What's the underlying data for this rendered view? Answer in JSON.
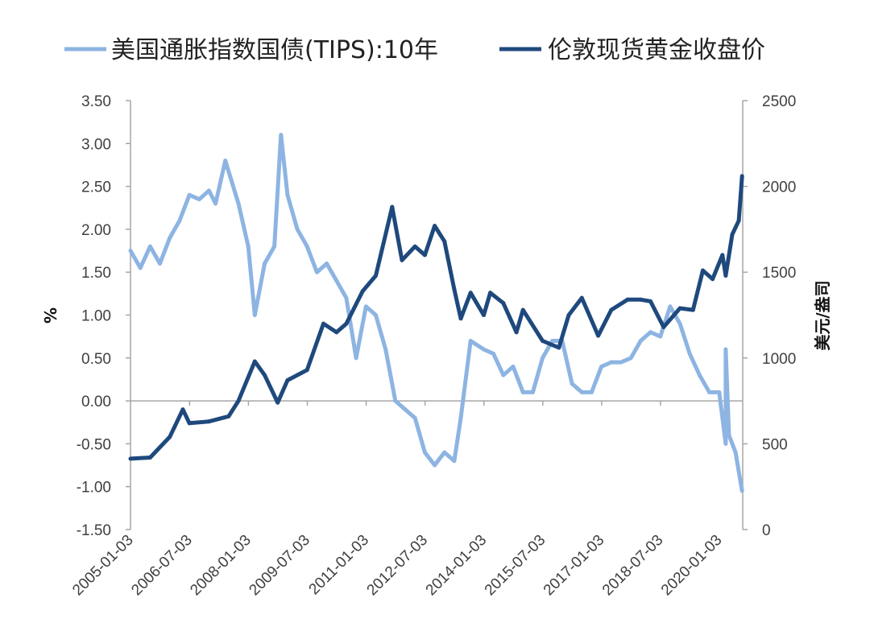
{
  "chart_data": {
    "type": "line",
    "title": "",
    "legend_position": "top",
    "grid": false,
    "x_tick_labels": [
      "2005-01-03",
      "2006-07-03",
      "2008-01-03",
      "2009-07-03",
      "2011-01-03",
      "2012-07-03",
      "2014-01-03",
      "2015-07-03",
      "2017-01-03",
      "2018-07-03",
      "2020-01-03"
    ],
    "y_left": {
      "label": "%",
      "range": [
        -1.5,
        3.5
      ],
      "ticks": [
        "3.50",
        "3.00",
        "2.50",
        "2.00",
        "1.50",
        "1.00",
        "0.50",
        "0.00",
        "-0.50",
        "-1.00",
        "-1.50"
      ]
    },
    "y_right": {
      "label": "美元/盎司",
      "range": [
        0,
        2500
      ],
      "ticks": [
        "2500",
        "2000",
        "1500",
        "1000",
        "500",
        "0"
      ]
    },
    "series": [
      {
        "name": "美国通胀指数国债(TIPS):10年",
        "axis": "left",
        "color": "#8DB4E2",
        "x": [
          "2005-01",
          "2005-04",
          "2005-07",
          "2005-10",
          "2006-01",
          "2006-04",
          "2006-07",
          "2006-10",
          "2007-01",
          "2007-03",
          "2007-06",
          "2007-10",
          "2008-01",
          "2008-03",
          "2008-06",
          "2008-09",
          "2008-11",
          "2009-01",
          "2009-04",
          "2009-07",
          "2009-10",
          "2010-01",
          "2010-04",
          "2010-07",
          "2010-10",
          "2011-01",
          "2011-04",
          "2011-07",
          "2011-10",
          "2012-01",
          "2012-04",
          "2012-07",
          "2012-10",
          "2013-01",
          "2013-04",
          "2013-06",
          "2013-09",
          "2014-01",
          "2014-04",
          "2014-07",
          "2014-10",
          "2015-01",
          "2015-04",
          "2015-07",
          "2015-10",
          "2016-01",
          "2016-04",
          "2016-07",
          "2016-10",
          "2017-01",
          "2017-04",
          "2017-07",
          "2017-10",
          "2018-01",
          "2018-04",
          "2018-07",
          "2018-10",
          "2019-01",
          "2019-04",
          "2019-07",
          "2019-10",
          "2020-01",
          "2020-03",
          "2020-03",
          "2020-04",
          "2020-06",
          "2020-08"
        ],
        "values": [
          1.75,
          1.55,
          1.8,
          1.6,
          1.9,
          2.1,
          2.4,
          2.35,
          2.45,
          2.3,
          2.8,
          2.3,
          1.8,
          1.0,
          1.6,
          1.8,
          3.1,
          2.4,
          2.0,
          1.8,
          1.5,
          1.6,
          1.4,
          1.2,
          0.5,
          1.1,
          1.0,
          0.6,
          0.0,
          -0.1,
          -0.2,
          -0.6,
          -0.75,
          -0.6,
          -0.7,
          -0.2,
          0.7,
          0.6,
          0.55,
          0.3,
          0.4,
          0.1,
          0.1,
          0.5,
          0.7,
          0.7,
          0.2,
          0.1,
          0.1,
          0.4,
          0.45,
          0.45,
          0.5,
          0.7,
          0.8,
          0.75,
          1.1,
          0.9,
          0.55,
          0.3,
          0.1,
          0.1,
          -0.5,
          0.6,
          -0.4,
          -0.6,
          -1.05
        ]
      },
      {
        "name": "伦敦现货黄金收盘价",
        "axis": "right",
        "color": "#1F497D",
        "x": [
          "2005-01",
          "2005-07",
          "2006-01",
          "2006-05",
          "2006-07",
          "2007-01",
          "2007-07",
          "2007-10",
          "2008-03",
          "2008-06",
          "2008-10",
          "2009-01",
          "2009-07",
          "2009-12",
          "2010-04",
          "2010-07",
          "2010-12",
          "2011-04",
          "2011-09",
          "2011-12",
          "2012-04",
          "2012-07",
          "2012-10",
          "2013-01",
          "2013-04",
          "2013-06",
          "2013-09",
          "2014-01",
          "2014-03",
          "2014-07",
          "2014-11",
          "2015-01",
          "2015-07",
          "2015-12",
          "2016-03",
          "2016-07",
          "2016-12",
          "2017-04",
          "2017-09",
          "2018-01",
          "2018-04",
          "2018-08",
          "2019-01",
          "2019-05",
          "2019-08",
          "2019-11",
          "2020-02",
          "2020-03",
          "2020-05",
          "2020-07",
          "2020-08"
        ],
        "values": [
          413,
          420,
          540,
          700,
          620,
          630,
          660,
          750,
          980,
          900,
          740,
          870,
          930,
          1200,
          1150,
          1200,
          1390,
          1480,
          1880,
          1570,
          1650,
          1600,
          1770,
          1680,
          1400,
          1230,
          1380,
          1250,
          1380,
          1320,
          1150,
          1280,
          1100,
          1060,
          1250,
          1350,
          1130,
          1280,
          1340,
          1340,
          1330,
          1180,
          1290,
          1280,
          1510,
          1460,
          1600,
          1480,
          1720,
          1800,
          2060
        ]
      }
    ]
  }
}
